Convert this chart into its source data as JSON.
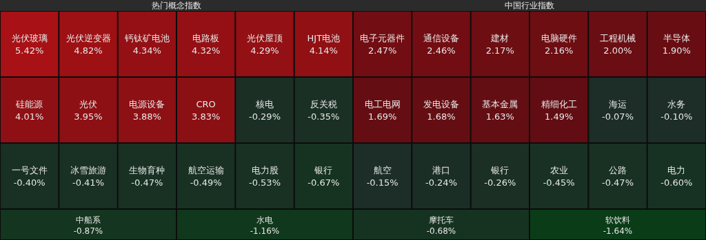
{
  "chart_data": [
    {
      "type": "other",
      "title": "热门概念指数",
      "categories": [
        "光伏玻璃",
        "光伏逆变器",
        "钙钛矿电池",
        "电路板",
        "光伏屋顶",
        "HJT电池",
        "硅能源",
        "光伏",
        "电源设备",
        "CRO",
        "核电",
        "反关税",
        "一号文件",
        "冰雪旅游",
        "生物育种",
        "航空运输",
        "电力股",
        "银行",
        "中船系",
        "水电"
      ],
      "values": [
        5.42,
        4.82,
        4.34,
        4.32,
        4.29,
        4.14,
        4.01,
        3.95,
        3.88,
        3.83,
        -0.29,
        -0.35,
        -0.4,
        -0.41,
        -0.47,
        -0.49,
        -0.53,
        -0.67,
        -0.87,
        -1.16
      ],
      "value_labels": [
        "5.42%",
        "4.82%",
        "4.34%",
        "4.32%",
        "4.29%",
        "4.14%",
        "4.01%",
        "3.95%",
        "3.88%",
        "3.83%",
        "-0.29%",
        "-0.35%",
        "-0.40%",
        "-0.41%",
        "-0.47%",
        "-0.49%",
        "-0.53%",
        "-0.67%",
        "-0.87%",
        "-1.16%"
      ]
    },
    {
      "type": "other",
      "title": "中国行业指数",
      "categories": [
        "电子元器件",
        "通信设备",
        "建材",
        "电脑硬件",
        "工程机械",
        "半导体",
        "电工电网",
        "发电设备",
        "基本金属",
        "精细化工",
        "海运",
        "水务",
        "航空",
        "港口",
        "银行",
        "农业",
        "公路",
        "电力",
        "摩托车",
        "软饮料"
      ],
      "values": [
        2.47,
        2.46,
        2.17,
        2.16,
        2.0,
        1.9,
        1.69,
        1.68,
        1.63,
        1.49,
        -0.07,
        -0.1,
        -0.15,
        -0.24,
        -0.26,
        -0.45,
        -0.47,
        -0.6,
        -0.68,
        -1.64
      ],
      "value_labels": [
        "2.47%",
        "2.46%",
        "2.17%",
        "2.16%",
        "2.00%",
        "1.90%",
        "1.69%",
        "1.68%",
        "1.63%",
        "1.49%",
        "-0.07%",
        "-0.10%",
        "-0.15%",
        "-0.24%",
        "-0.26%",
        "-0.45%",
        "-0.47%",
        "-0.60%",
        "-0.68%",
        "-1.64%"
      ]
    }
  ]
}
